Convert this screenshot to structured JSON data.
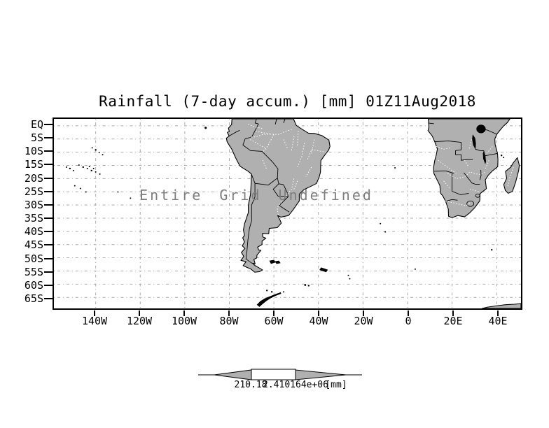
{
  "title": "Rainfall (7-day accum.) [mm] 01Z11Aug2018",
  "overlay_message": "Entire Grid Undefined",
  "axes": {
    "lat_labels": [
      "EQ",
      "5S",
      "10S",
      "15S",
      "20S",
      "25S",
      "30S",
      "35S",
      "40S",
      "45S",
      "50S",
      "55S",
      "60S",
      "65S"
    ],
    "lon_labels": [
      "140W",
      "120W",
      "100W",
      "80W",
      "60W",
      "40W",
      "20W",
      "0",
      "20E",
      "40E"
    ]
  },
  "colorbar": {
    "left_label": "210.18",
    "right_label": "2.410164e+06",
    "units_label": "[mm]"
  },
  "colors": {
    "land": "#b0b0b0",
    "coast": "#000000",
    "grid": "#a9a9a9",
    "message": "#7e7e7e",
    "river": "#ffffff",
    "ink": "#000000",
    "background": "#ffffff"
  },
  "chart_data": {
    "type": "heatmap",
    "title": "Rainfall (7-day accum.) [mm] 01Z11Aug2018",
    "variable": "Rainfall (7-day accum.)",
    "units": "mm",
    "valid_time": "01Z11Aug2018",
    "x_ticks": [
      "140W",
      "120W",
      "100W",
      "80W",
      "60W",
      "40W",
      "20W",
      "0",
      "20E",
      "40E"
    ],
    "y_ticks": [
      "EQ",
      "5S",
      "10S",
      "15S",
      "20S",
      "25S",
      "30S",
      "35S",
      "40S",
      "45S",
      "50S",
      "55S",
      "60S",
      "65S"
    ],
    "lon_range_deg": [
      -159,
      51
    ],
    "lat_range_deg": [
      -69,
      3
    ],
    "grid": true,
    "values": [],
    "status": "Entire Grid Undefined",
    "colorbar": {
      "orientation": "horizontal",
      "labels": [
        "210.18",
        "2.410164e+06"
      ],
      "units": "[mm]"
    }
  }
}
